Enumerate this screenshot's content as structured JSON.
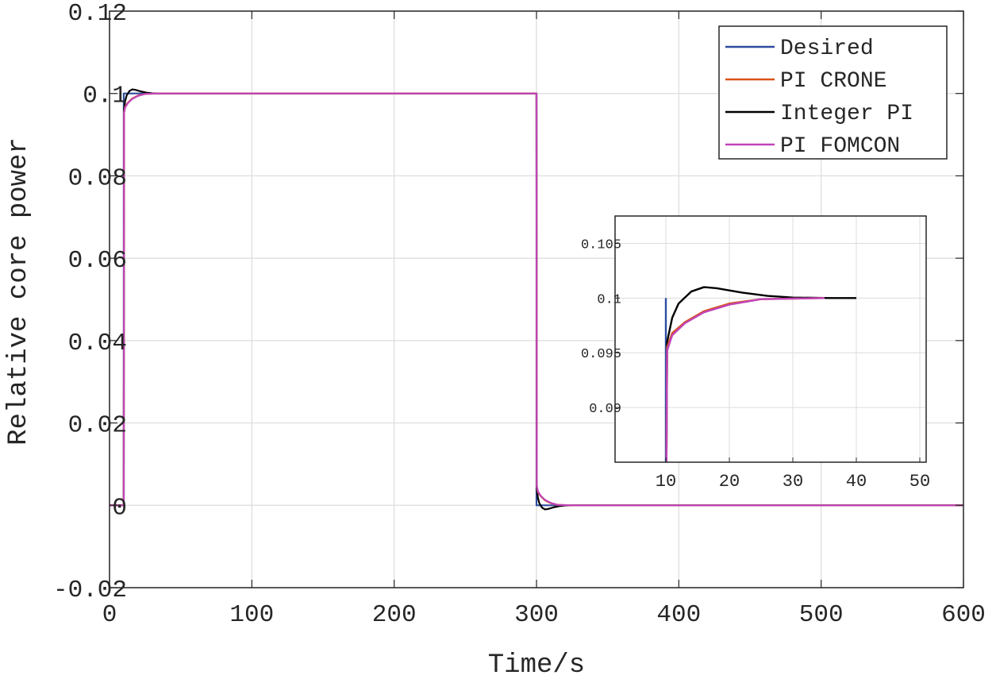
{
  "chart_data": [
    {
      "type": "line",
      "title": "",
      "xlabel": "Time/s",
      "ylabel": "Relative core power",
      "xlim": [
        0,
        600
      ],
      "ylim": [
        -0.02,
        0.12
      ],
      "xticks": [
        0,
        100,
        200,
        300,
        400,
        500,
        600
      ],
      "xtick_labels": [
        "0",
        "100",
        "200",
        "300",
        "400",
        "500",
        "600"
      ],
      "yticks": [
        -0.02,
        0,
        0.02,
        0.04,
        0.06,
        0.08,
        0.1,
        0.12
      ],
      "ytick_labels": [
        "-0.02",
        "0",
        "0.02",
        "0.04",
        "0.06",
        "0.08",
        "0.1",
        "0.12"
      ],
      "grid": true,
      "legend_position": "top-right",
      "series": [
        {
          "name": "Desired",
          "color": "#2e4da0",
          "x": [
            0,
            10,
            10,
            300,
            300,
            600
          ],
          "y": [
            0,
            0,
            0.1,
            0.1,
            0,
            0
          ]
        },
        {
          "name": "PI CRONE",
          "color": "#d95319",
          "x": [
            0,
            10,
            10.2,
            11,
            13,
            16,
            20,
            25,
            35,
            300,
            300.2,
            301,
            303,
            306,
            310,
            315,
            325,
            600
          ],
          "y": [
            0,
            0,
            0.0955,
            0.0968,
            0.0978,
            0.0988,
            0.0995,
            0.0999,
            0.1,
            0.1,
            0.0045,
            0.0032,
            0.0022,
            0.0012,
            0.0005,
            0.0001,
            0,
            0
          ]
        },
        {
          "name": "Integer PI",
          "color": "#000000",
          "x": [
            0,
            10,
            10.2,
            11,
            12,
            14,
            16,
            18,
            22,
            26,
            30,
            36,
            40,
            300,
            300.2,
            301,
            302,
            304,
            306,
            308,
            312,
            316,
            320,
            326,
            330,
            600
          ],
          "y": [
            0,
            0,
            0.096,
            0.0982,
            0.0995,
            0.1006,
            0.101,
            0.1009,
            0.1005,
            0.1002,
            0.10005,
            0.1,
            0.1,
            0.1,
            0.004,
            0.0018,
            0.0005,
            -0.0006,
            -0.001,
            -0.0009,
            -0.0005,
            -0.0002,
            -5e-05,
            0,
            0,
            0
          ]
        },
        {
          "name": "PI FOMCON",
          "color": "#c044b8",
          "x": [
            0,
            10,
            10.2,
            11,
            13,
            16,
            20,
            25,
            35,
            300,
            300.2,
            301,
            303,
            306,
            310,
            315,
            325,
            600
          ],
          "y": [
            0,
            0,
            0.0952,
            0.0966,
            0.0977,
            0.0987,
            0.0994,
            0.0999,
            0.1,
            0.1,
            0.0048,
            0.0034,
            0.0023,
            0.0013,
            0.0006,
            0.0001,
            0,
            0
          ]
        }
      ]
    },
    {
      "type": "line",
      "title": "",
      "xlabel": "",
      "ylabel": "",
      "xlim": [
        2,
        51
      ],
      "ylim": [
        0.085,
        0.1075
      ],
      "xticks": [
        10,
        20,
        30,
        40,
        50
      ],
      "xtick_labels": [
        "10",
        "20",
        "30",
        "40",
        "50"
      ],
      "yticks": [
        0.09,
        0.095,
        0.1,
        0.105
      ],
      "ytick_labels": [
        "0.09",
        "0.095",
        "0.1",
        "0.105"
      ],
      "grid": true,
      "series_ref": "zoomed view of main chart series"
    }
  ],
  "legend": {
    "items": [
      {
        "label": "Desired",
        "color": "#2e4da0"
      },
      {
        "label": "PI CRONE",
        "color": "#d95319"
      },
      {
        "label": "Integer PI",
        "color": "#000000"
      },
      {
        "label": "PI FOMCON",
        "color": "#c044b8"
      }
    ]
  }
}
